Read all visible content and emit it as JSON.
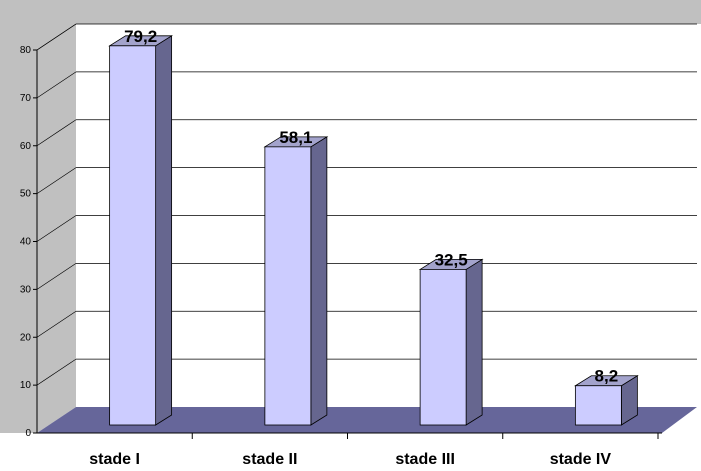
{
  "chart_data": {
    "type": "bar",
    "title": "",
    "xlabel": "",
    "ylabel": "",
    "categories": [
      "stade I",
      "stade II",
      "stade III",
      "stade IV"
    ],
    "values": [
      79.2,
      58.1,
      32.5,
      8.2
    ],
    "value_labels": [
      "79,2",
      "58,1",
      "32,5",
      "8,2"
    ],
    "ylim": [
      0,
      80
    ],
    "yticks": [
      0,
      10,
      20,
      30,
      40,
      50,
      60,
      70,
      80
    ],
    "yticklabels": [
      "0",
      "10",
      "20",
      "30",
      "40",
      "50",
      "60",
      "70",
      "80"
    ],
    "grid": true,
    "legend": "none",
    "style": "3d-column",
    "colors": {
      "bar_front": "#ccccff",
      "bar_top": "#a3a3cc",
      "bar_side": "#66668f",
      "floor": "#66669a",
      "side_wall": "#c0c0c0",
      "back_wall": "#ffffff",
      "gridline": "#000000"
    }
  }
}
